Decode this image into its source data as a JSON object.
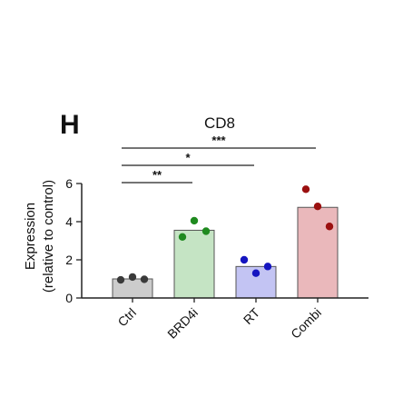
{
  "panel_label": "H",
  "chart_data": {
    "type": "bar",
    "title": "CD8",
    "xlabel": "",
    "ylabel_lines": [
      "Expression",
      "(relative to control)"
    ],
    "ylim": [
      0,
      6
    ],
    "yticks": [
      "0",
      "2",
      "4",
      "6"
    ],
    "grid": false,
    "categories": [
      "Ctrl",
      "BRD4i",
      "RT",
      "Combi"
    ],
    "values": [
      1.0,
      3.55,
      1.65,
      4.75
    ],
    "points": [
      [
        0.95,
        1.1,
        0.98
      ],
      [
        3.2,
        4.05,
        3.5
      ],
      [
        2.0,
        1.3,
        1.65
      ],
      [
        5.7,
        4.8,
        3.75
      ]
    ],
    "bar_colors": [
      "#cccccc",
      "#c5e4c4",
      "#c3c4f3",
      "#eab8bb"
    ],
    "point_colors": [
      "#3a3a3a",
      "#1f8a1f",
      "#1515c0",
      "#9b1010"
    ],
    "significance": [
      {
        "from": "Ctrl",
        "to": "BRD4i",
        "label": "**"
      },
      {
        "from": "Ctrl",
        "to": "RT",
        "label": "*"
      },
      {
        "from": "Ctrl",
        "to": "Combi",
        "label": "***"
      }
    ]
  }
}
